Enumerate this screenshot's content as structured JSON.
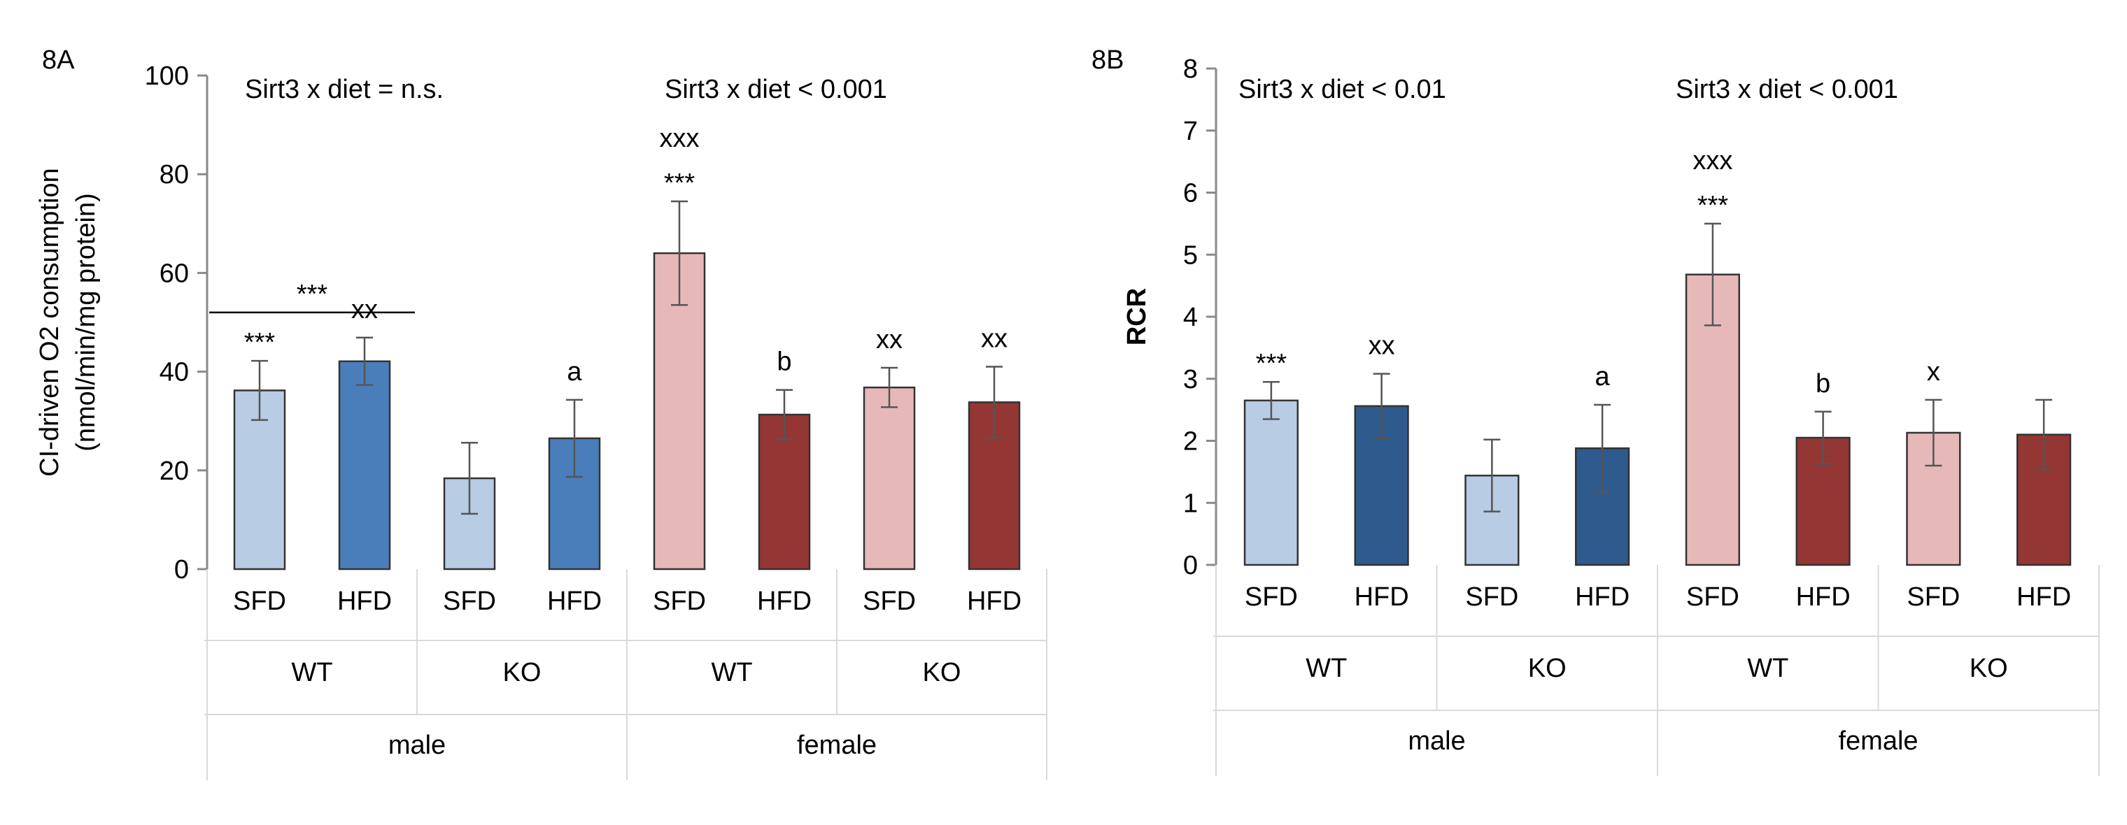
{
  "chart_data": [
    {
      "type": "bar",
      "panel_label": "8A",
      "title": "",
      "xlabel": "",
      "ylabel_lines": [
        "CI-driven O2 consumption",
        "(nmol/min/mg protein)"
      ],
      "ylim": [
        0,
        100
      ],
      "yticks": [
        0,
        20,
        40,
        60,
        80,
        100
      ],
      "grid": false,
      "categories": [
        "SFD",
        "HFD",
        "SFD",
        "HFD",
        "SFD",
        "HFD",
        "SFD",
        "HFD"
      ],
      "genotypes": [
        "WT",
        "KO",
        "WT",
        "KO"
      ],
      "sexes": [
        "male",
        "female"
      ],
      "values": [
        36.2,
        42.1,
        18.4,
        26.5,
        64.0,
        31.3,
        36.8,
        33.8
      ],
      "errors": [
        6.0,
        4.8,
        7.2,
        7.8,
        10.5,
        5.0,
        4.0,
        7.2
      ],
      "bar_colors": [
        "#b8cce4",
        "#4a7ebb",
        "#b8cce4",
        "#4a7ebb",
        "#e6b9b8",
        "#943634",
        "#e6b9b8",
        "#943634"
      ],
      "bar_annotations": [
        [
          "***"
        ],
        [
          "xx"
        ],
        [],
        [
          "a"
        ],
        [
          "xxx",
          "***"
        ],
        [
          "b"
        ],
        [
          "xx"
        ],
        [
          "xx"
        ]
      ],
      "bracket": {
        "label": "***",
        "from": 0,
        "to": 1,
        "y": 52
      },
      "interaction_labels": [
        "Sirt3 x diet = n.s.",
        "Sirt3 x diet < 0.001"
      ]
    },
    {
      "type": "bar",
      "panel_label": "8B",
      "title": "",
      "xlabel": "",
      "ylabel_lines": [
        "RCR"
      ],
      "ylim": [
        0,
        8
      ],
      "yticks": [
        0,
        1,
        2,
        3,
        4,
        5,
        6,
        7,
        8
      ],
      "grid": false,
      "categories": [
        "SFD",
        "HFD",
        "SFD",
        "HFD",
        "SFD",
        "HFD",
        "SFD",
        "HFD"
      ],
      "genotypes": [
        "WT",
        "KO",
        "WT",
        "KO"
      ],
      "sexes": [
        "male",
        "female"
      ],
      "values": [
        2.65,
        2.56,
        1.44,
        1.88,
        4.68,
        2.05,
        2.13,
        2.1
      ],
      "errors": [
        0.3,
        0.52,
        0.58,
        0.7,
        0.82,
        0.42,
        0.53,
        0.56
      ],
      "bar_colors": [
        "#b8cce4",
        "#2e5a8e",
        "#b8cce4",
        "#2e5a8e",
        "#e6b9b8",
        "#943634",
        "#e6b9b8",
        "#943634"
      ],
      "bar_annotations": [
        [
          "***"
        ],
        [
          "xx"
        ],
        [],
        [
          "a"
        ],
        [
          "xxx",
          "***"
        ],
        [
          "b"
        ],
        [
          "x"
        ],
        []
      ],
      "bracket": null,
      "interaction_labels": [
        "Sirt3 x diet < 0.01",
        "Sirt3 x diet < 0.001"
      ]
    }
  ]
}
